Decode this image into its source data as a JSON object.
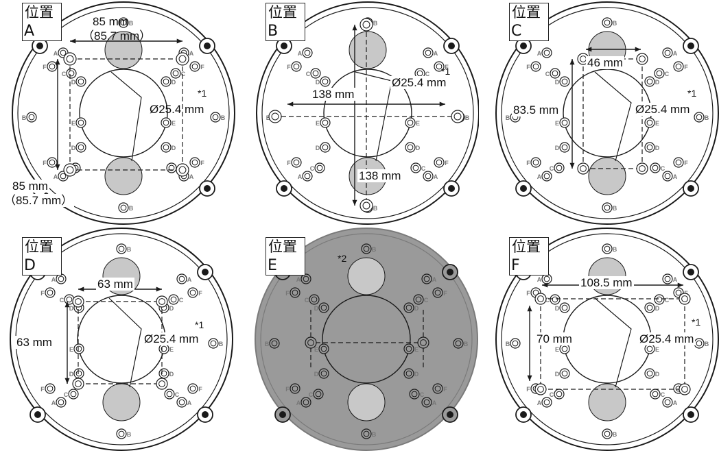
{
  "panels": {
    "A": {
      "label_jp": "位置",
      "label_letter": "A",
      "dim_top": "85 mm",
      "dim_top_alt": "（85.7 mm）",
      "dim_left": "85 mm",
      "dim_left_alt": "（85.7 mm）",
      "hole": "Ø25.4 mm",
      "note": "*1"
    },
    "B": {
      "label_jp": "位置",
      "label_letter": "B",
      "dim_h": "138 mm",
      "dim_v": "138 mm",
      "hole": "Ø25.4 mm",
      "note": "*1"
    },
    "C": {
      "label_jp": "位置",
      "label_letter": "C",
      "dim_h": "46 mm",
      "dim_v": "83.5 mm",
      "hole": "Ø25.4 mm",
      "note": "*1"
    },
    "D": {
      "label_jp": "位置",
      "label_letter": "D",
      "dim_h": "63 mm",
      "dim_v": "63 mm",
      "hole": "Ø25.4 mm",
      "note": "*1"
    },
    "E": {
      "label_jp": "位置",
      "label_letter": "E",
      "note": "*2"
    },
    "F": {
      "label_jp": "位置",
      "label_letter": "F",
      "dim_h": "108.5 mm",
      "dim_v": "70 mm",
      "hole": "Ø25.4 mm",
      "note": "*1"
    }
  },
  "hole_letters": [
    "A",
    "B",
    "C",
    "D",
    "E",
    "F"
  ],
  "colors": {
    "line": "#1a1a1a",
    "knockout": "#c8c8c8",
    "plate_shaded": "#9a9a9a",
    "plate": "#ffffff"
  }
}
